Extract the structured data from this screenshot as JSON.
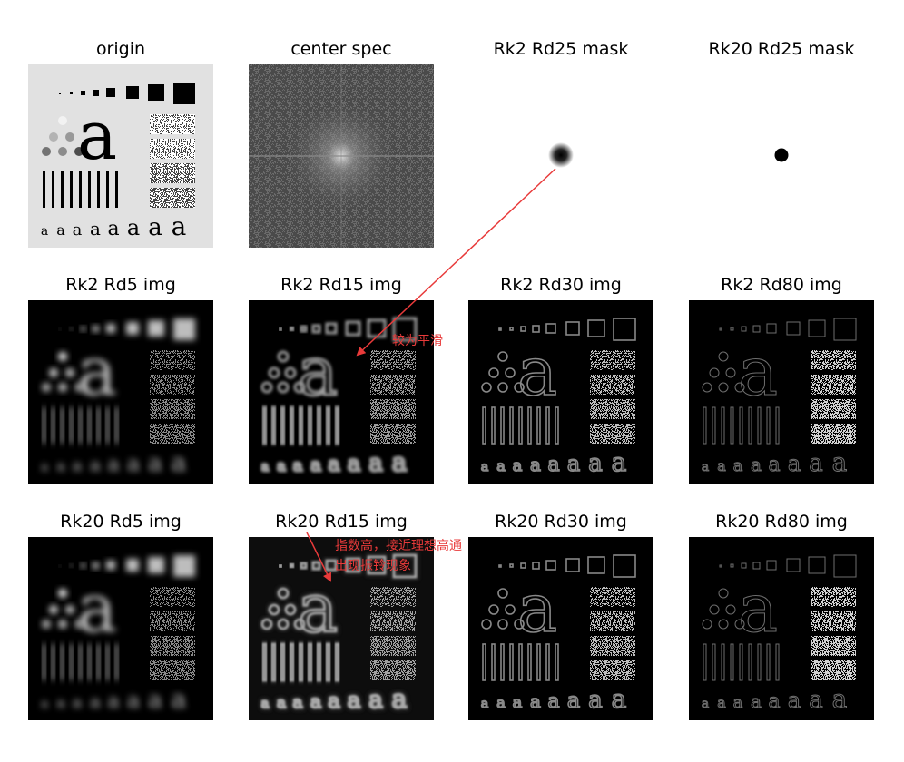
{
  "panels": [
    {
      "title": "origin",
      "kind": "origin"
    },
    {
      "title": "center spec",
      "kind": "spectrum"
    },
    {
      "title": "Rk2 Rd25 mask",
      "kind": "mask-soft"
    },
    {
      "title": "Rk20 Rd25 mask",
      "kind": "mask-hard"
    },
    {
      "title": "Rk2 Rd5 img",
      "kind": "glow"
    },
    {
      "title": "Rk2 Rd15 img",
      "kind": "smooth"
    },
    {
      "title": "Rk2 Rd30 img",
      "kind": "edge"
    },
    {
      "title": "Rk2 Rd80 img",
      "kind": "edge-fine"
    },
    {
      "title": "Rk20 Rd5 img",
      "kind": "glow"
    },
    {
      "title": "Rk20 Rd15 img",
      "kind": "ring"
    },
    {
      "title": "Rk20 Rd30 img",
      "kind": "edge"
    },
    {
      "title": "Rk20 Rd80 img",
      "kind": "edge-fine"
    }
  ],
  "annotations": {
    "note1": "较为平滑",
    "note2_line1": "指数高，接近理想高通",
    "note2_line2": "出现振铃现象"
  },
  "colors": {
    "annotation": "#e83a3a"
  }
}
